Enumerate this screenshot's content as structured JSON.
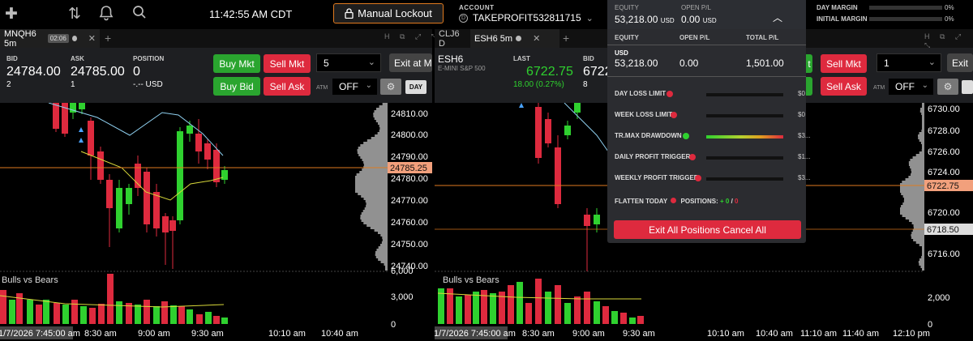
{
  "topbar": {
    "time": "11:42:55 AM CDT",
    "lockout_label": "Manual Lockout",
    "account_label": "ACCOUNT",
    "account_name": "TAKEPROFIT532811715",
    "account_icon_text": "D",
    "equity_label": "EQUITY",
    "equity_value": "53,218.00",
    "equity_currency": "USD",
    "open_pl_label": "OPEN P/L",
    "open_pl_value": "0.00",
    "open_pl_currency": "USD",
    "day_margin_label": "DAY MARGIN",
    "day_margin_pct": "0%",
    "initial_margin_label": "INITIAL MARGIN",
    "initial_margin_pct": "0%"
  },
  "left": {
    "tab_name": "MNQH6 5m",
    "tab_timer": "02:06",
    "header_letter": "H",
    "bid_label": "BID",
    "bid": "24784.00",
    "bid_size": "2",
    "ask_label": "ASK",
    "ask": "24785.00",
    "ask_size": "1",
    "pos_label": "POSITION",
    "pos": "0",
    "pos_sub": "-.-- USD",
    "buy_mkt": "Buy Mkt",
    "sell_mkt": "Sell Mkt",
    "buy_bid": "Buy Bid",
    "sell_ask": "Sell Ask",
    "qty": "5",
    "exit_label": "Exit at Mkt",
    "atm_label": "ATM",
    "atm_value": "OFF",
    "day_label": "DAY",
    "price_ticks": [
      "24810.00",
      "24800.00",
      "24790.00",
      "24780.00",
      "24770.00",
      "24760.00",
      "24750.00",
      "24740.00"
    ],
    "last_price_tag": "24785.25",
    "indicator_label": "Bulls vs Bears",
    "vol_ticks": [
      "6,000",
      "3,000",
      "0"
    ],
    "time_start": "1/7/2026 7:45:00 am",
    "time_ticks": [
      "8:30 am",
      "9:00 am",
      "9:30 am",
      "10:10 am",
      "10:40 am"
    ]
  },
  "right": {
    "tab_prev": "CLJ6 D",
    "tab_name": "ESH6 5m",
    "header_letter": "H",
    "symbol": "ESH6",
    "symbol_desc": "E-MINI S&P 500",
    "last_label": "LAST",
    "last": "6722.75",
    "change": "18.00 (0.27%)",
    "bid_label": "BID",
    "bid": "6722",
    "bid_size": "8",
    "buy_mkt_partial": "t",
    "sell_mkt": "Sell Mkt",
    "sell_ask": "Sell Ask",
    "qty": "1",
    "exit_label": "Exit",
    "atm_label": "ATM",
    "atm_value": "OFF",
    "price_ticks": [
      "6730.00",
      "6728.00",
      "6726.00",
      "6724.00",
      "6720.00",
      "6716.00"
    ],
    "last_price_tag": "6722.75",
    "level_tag": "6718.50",
    "indicator_label": "Bulls vs Bears",
    "vol_ticks": [
      "2,000",
      "0"
    ],
    "time_start": "1/7/2026 7:45:00 am",
    "time_ticks": [
      "8:30 am",
      "9:00 am",
      "9:30 am",
      "10:10 am",
      "10:40 am",
      "11:10 am",
      "11:40 am",
      "12:10 pm"
    ]
  },
  "panel": {
    "equity_hdr": "EQUITY",
    "open_pl_hdr": "OPEN P/L",
    "total_pl_hdr": "TOTAL P/L",
    "currency": "USD",
    "equity": "53,218.00",
    "open_pl": "0.00",
    "total_pl": "1,501.00",
    "limits": [
      {
        "label": "DAY LOSS LIMIT",
        "value": "$0",
        "status": "red"
      },
      {
        "label": "WEEK LOSS LIMIT",
        "value": "$0",
        "status": "red"
      },
      {
        "label": "TR.MAX DRAWDOWN",
        "value": "$3...",
        "status": "green"
      },
      {
        "label": "DAILY PROFIT TRIGGER",
        "value": "$1...",
        "status": "red"
      },
      {
        "label": "WEEKLY PROFIT TRIGGER",
        "value": "$3...",
        "status": "red"
      }
    ],
    "flatten_label": "FLATTEN TODAY",
    "positions_label": "POSITIONS:",
    "positions_long": "+ 0",
    "positions_sep": "/",
    "positions_short": "0",
    "exit_all_label": "Exit All Positions Cancel All"
  },
  "colors": {
    "up": "#2fd12f",
    "down": "#de2a3e",
    "accent": "#e07a1f",
    "panel": "#2b2c30"
  },
  "chart_data": [
    {
      "type": "candlestick",
      "title": "MNQH6 5m",
      "ylim": [
        24738,
        24815
      ],
      "last": 24785.25
    },
    {
      "type": "candlestick",
      "title": "ESH6 5m",
      "ylim": [
        6715,
        6731
      ],
      "last": 6722.75
    }
  ]
}
